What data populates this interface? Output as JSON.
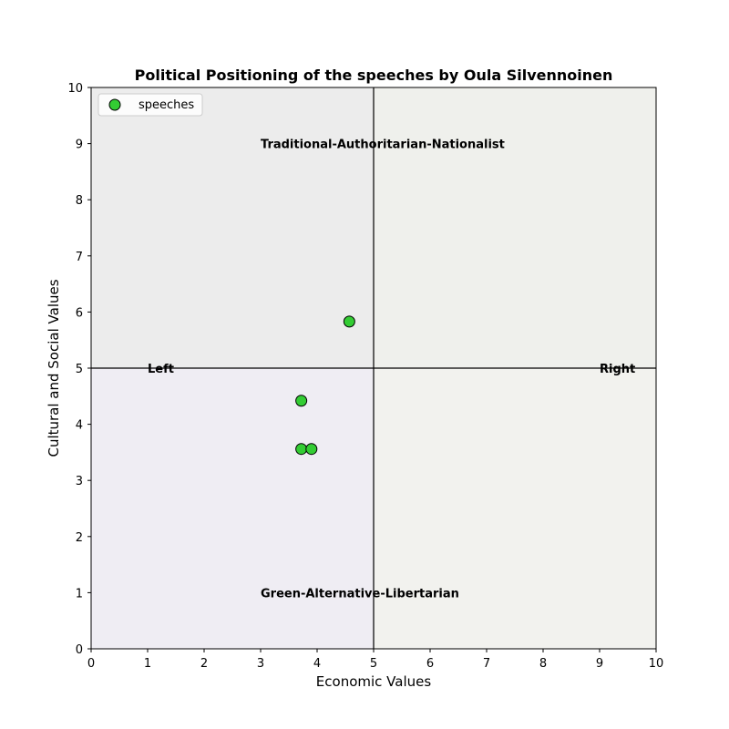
{
  "chart_data": {
    "type": "scatter",
    "title": "Political Positioning of the speeches by Oula Silvennoinen",
    "xlabel": "Economic Values",
    "ylabel": "Cultural and Social Values",
    "xlim": [
      0,
      10
    ],
    "ylim": [
      0,
      10
    ],
    "xticks": [
      "0",
      "1",
      "2",
      "3",
      "4",
      "5",
      "6",
      "7",
      "8",
      "9",
      "10"
    ],
    "yticks": [
      "0",
      "1",
      "2",
      "3",
      "4",
      "5",
      "6",
      "7",
      "8",
      "9",
      "10"
    ],
    "grid": false,
    "legend": {
      "position": "top-left",
      "entries": [
        "speeches"
      ]
    },
    "series": [
      {
        "name": "speeches",
        "color": "#33cc33",
        "edge_color": "#000000",
        "points": [
          {
            "x": 4.57,
            "y": 5.83
          },
          {
            "x": 3.72,
            "y": 4.42
          },
          {
            "x": 3.72,
            "y": 3.56
          },
          {
            "x": 3.9,
            "y": 3.56
          }
        ]
      }
    ],
    "quadrant_colors": {
      "top_left": "#ececec",
      "top_right": "#eff0ec",
      "bottom_left": "#efedf3",
      "bottom_right": "#f2f2ee"
    },
    "reference_lines": {
      "x": 5,
      "y": 5
    },
    "annotations": [
      {
        "text": "Traditional-Authoritarian-Nationalist",
        "x": 3,
        "y": 9
      },
      {
        "text": "Green-Alternative-Libertarian",
        "x": 3,
        "y": 1
      },
      {
        "text": "Left",
        "x": 1,
        "y": 5
      },
      {
        "text": "Right",
        "x": 9,
        "y": 5
      }
    ]
  }
}
